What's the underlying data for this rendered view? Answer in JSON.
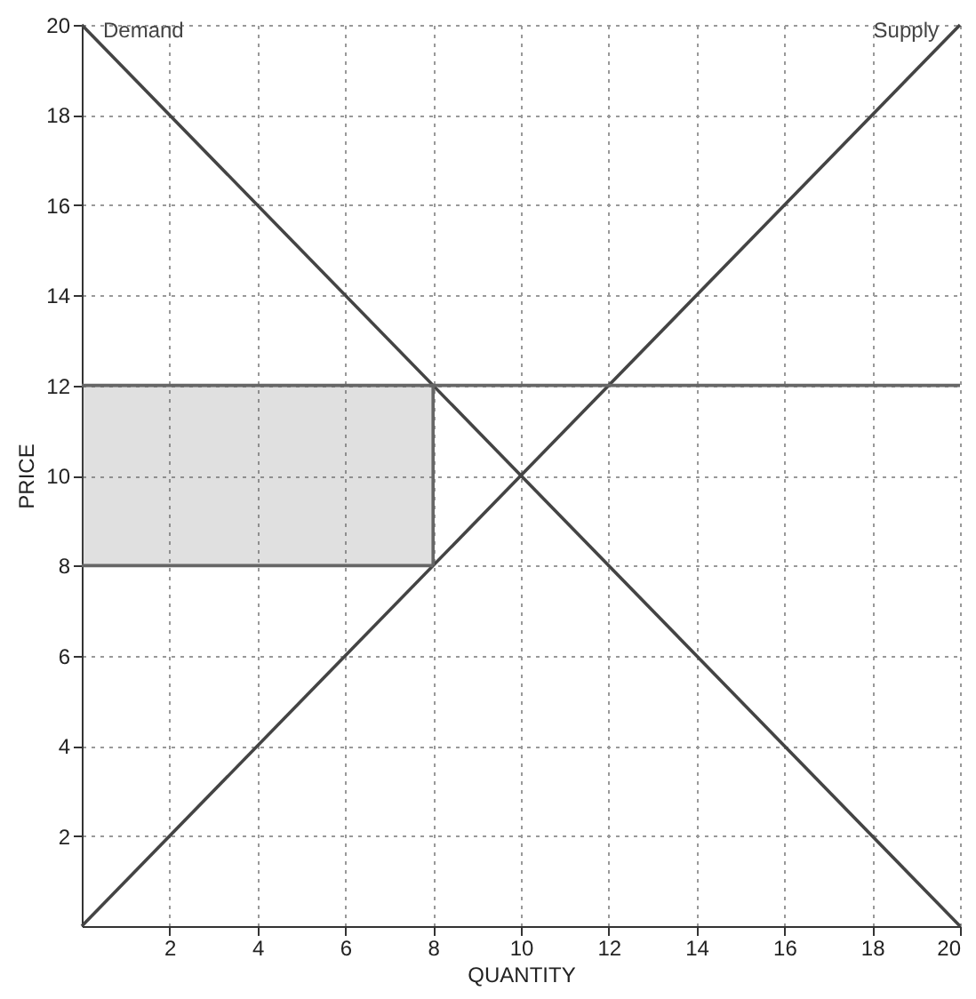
{
  "chart_data": {
    "type": "line",
    "xlabel": "QUANTITY",
    "ylabel": "PRICE",
    "xlim": [
      0,
      20
    ],
    "ylim": [
      0,
      20
    ],
    "xticks": [
      2,
      4,
      6,
      8,
      10,
      12,
      14,
      16,
      18,
      20
    ],
    "yticks": [
      2,
      4,
      6,
      8,
      10,
      12,
      14,
      16,
      18,
      20
    ],
    "grid": true,
    "marker": "none",
    "line_style": "solid",
    "series": [
      {
        "name": "Demand",
        "color": "#444444",
        "x": [
          0,
          20
        ],
        "values": [
          20,
          0
        ]
      },
      {
        "name": "Supply",
        "color": "#444444",
        "x": [
          0,
          20
        ],
        "values": [
          0,
          20
        ]
      },
      {
        "color": "#666666",
        "x": [
          0,
          20
        ],
        "values": [
          12,
          12
        ]
      },
      {
        "color": "#666666",
        "x": [
          0,
          8
        ],
        "values": [
          8,
          8
        ],
        "lower": [
          8,
          8
        ],
        "upper": [
          12,
          12
        ]
      },
      {
        "color": "#666666",
        "x": [
          8,
          8
        ],
        "values": [
          8,
          12
        ]
      }
    ]
  }
}
